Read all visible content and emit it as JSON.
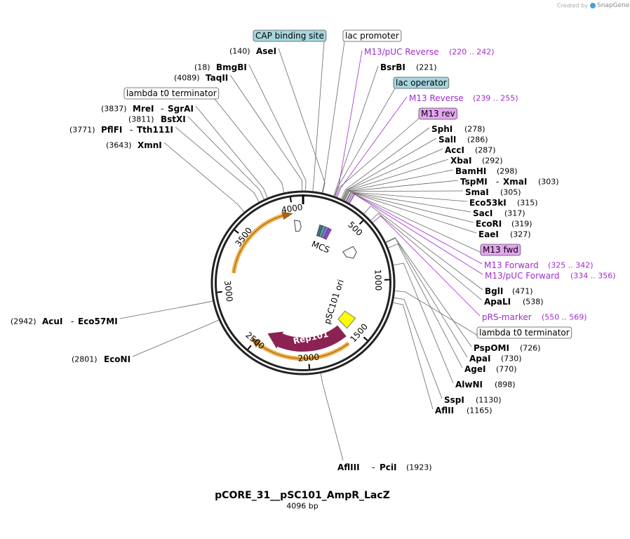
{
  "credit": {
    "prefix": "Created by",
    "brand": "SnapGene"
  },
  "title": "pCORE_31__pSC101_AmpR_LacZ",
  "length": {
    "value": 4096,
    "label": "4096 bp"
  },
  "ring_ticks": [
    500,
    1000,
    1500,
    2000,
    2500,
    3000,
    3500,
    4000
  ],
  "inner_labels": {
    "mcs": "MCS",
    "ori": "pSC101 ori",
    "rep": "Rep101"
  },
  "sites": [
    {
      "position": {
        "value": 140,
        "label": "(140)"
      },
      "names": [
        "AseI"
      ]
    },
    {
      "position": {
        "value": 18,
        "label": "(18)"
      },
      "names": [
        "BmgBI"
      ]
    },
    {
      "position": {
        "value": 4089,
        "label": "(4089)"
      },
      "names": [
        "TaqII"
      ]
    },
    {
      "position": {
        "value": 3837,
        "label": "(3837)"
      },
      "names": [
        "MreI",
        "SgrAI"
      ],
      "separator": "-"
    },
    {
      "position": {
        "value": 3811,
        "label": "(3811)"
      },
      "names": [
        "BstXI"
      ]
    },
    {
      "position": {
        "value": 3771,
        "label": "(3771)"
      },
      "names": [
        "PflFI",
        "Tth111I"
      ],
      "separator": "-"
    },
    {
      "position": {
        "value": 3643,
        "label": "(3643)"
      },
      "names": [
        "XmnI"
      ]
    },
    {
      "position": {
        "value": 2942,
        "label": "(2942)"
      },
      "names": [
        "AcuI",
        "Eco57MI"
      ],
      "separator": "-"
    },
    {
      "position": {
        "value": 2801,
        "label": "(2801)"
      },
      "names": [
        "EcoNI"
      ]
    },
    {
      "position": {
        "value": 1923,
        "label": "(1923)"
      },
      "names": [
        "AflIII",
        "PciI"
      ],
      "separator": "-"
    },
    {
      "position": {
        "value": 221,
        "label": "(221)"
      },
      "names": [
        "BsrBI"
      ]
    },
    {
      "position": {
        "value": 278,
        "label": "(278)"
      },
      "names": [
        "SphI"
      ]
    },
    {
      "position": {
        "value": 286,
        "label": "(286)"
      },
      "names": [
        "SalI"
      ]
    },
    {
      "position": {
        "value": 287,
        "label": "(287)"
      },
      "names": [
        "AccI"
      ]
    },
    {
      "position": {
        "value": 292,
        "label": "(292)"
      },
      "names": [
        "XbaI"
      ]
    },
    {
      "position": {
        "value": 298,
        "label": "(298)"
      },
      "names": [
        "BamHI"
      ]
    },
    {
      "position": {
        "value": 303,
        "label": "(303)"
      },
      "names": [
        "TspMI",
        "XmaI"
      ],
      "separator": "-"
    },
    {
      "position": {
        "value": 305,
        "label": "(305)"
      },
      "names": [
        "SmaI"
      ]
    },
    {
      "position": {
        "value": 315,
        "label": "(315)"
      },
      "names": [
        "Eco53kI"
      ]
    },
    {
      "position": {
        "value": 317,
        "label": "(317)"
      },
      "names": [
        "SacI"
      ]
    },
    {
      "position": {
        "value": 319,
        "label": "(319)"
      },
      "names": [
        "EcoRI"
      ]
    },
    {
      "position": {
        "value": 327,
        "label": "(327)"
      },
      "names": [
        "EaeI"
      ]
    },
    {
      "position": {
        "value": 471,
        "label": "(471)"
      },
      "names": [
        "BglI"
      ]
    },
    {
      "position": {
        "value": 538,
        "label": "(538)"
      },
      "names": [
        "ApaLI"
      ]
    },
    {
      "position": {
        "value": 726,
        "label": "(726)"
      },
      "names": [
        "PspOMI"
      ]
    },
    {
      "position": {
        "value": 730,
        "label": "(730)"
      },
      "names": [
        "ApaI"
      ]
    },
    {
      "position": {
        "value": 770,
        "label": "(770)"
      },
      "names": [
        "AgeI"
      ]
    },
    {
      "position": {
        "value": 898,
        "label": "(898)"
      },
      "names": [
        "AlwNI"
      ]
    },
    {
      "position": {
        "value": 1130,
        "label": "(1130)"
      },
      "names": [
        "SspI"
      ]
    },
    {
      "position": {
        "value": 1165,
        "label": "(1165)"
      },
      "names": [
        "AflII"
      ]
    }
  ],
  "features": [
    {
      "name": "M13/pUC Reverse",
      "range": {
        "start": 220,
        "end": 242,
        "label": "(220 .. 242)"
      }
    },
    {
      "name": "M13 Reverse",
      "range": {
        "start": 239,
        "end": 255,
        "label": "(239 .. 255)"
      }
    },
    {
      "name": "M13 Forward",
      "range": {
        "start": 325,
        "end": 342,
        "label": "(325 .. 342)"
      }
    },
    {
      "name": "M13/pUC Forward",
      "range": {
        "start": 334,
        "end": 356,
        "label": "(334 .. 356)"
      }
    },
    {
      "name": "pRS-marker",
      "range": {
        "start": 550,
        "end": 569,
        "label": "(550 .. 569)"
      }
    }
  ],
  "feature_color": "#a02cd0",
  "boxes": [
    {
      "name": "CAP binding site",
      "color": "#a6d6de"
    },
    {
      "name": "lac promoter",
      "color": "#ffffff"
    },
    {
      "name": "lambda t0 terminator",
      "color": "#ffffff"
    },
    {
      "name": "lac operator",
      "color": "#a6d6de"
    },
    {
      "name": "M13 rev",
      "color": "#e3a6f0"
    },
    {
      "name": "M13 fwd",
      "color": "#e3a6f0"
    },
    {
      "name": "lambda t0 terminator",
      "color": "#ffffff"
    }
  ]
}
